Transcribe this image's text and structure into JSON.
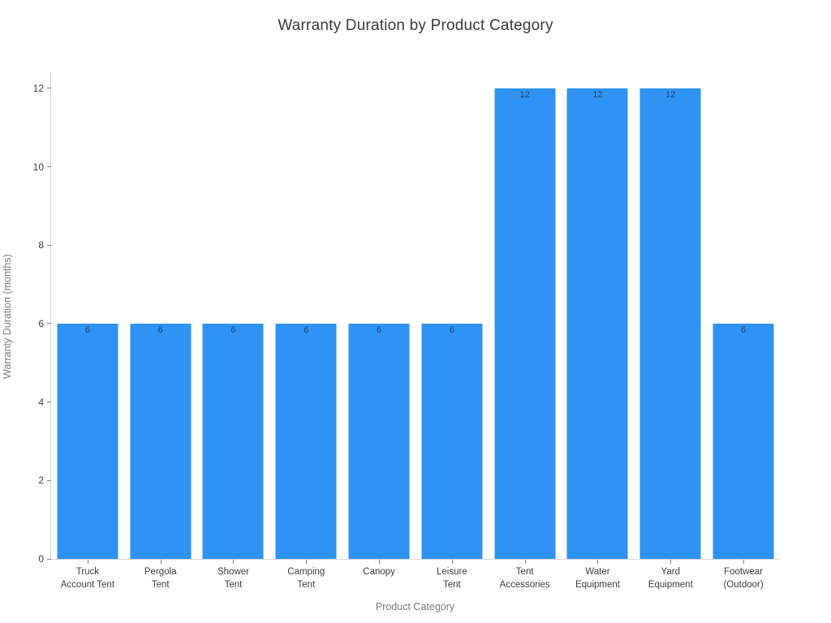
{
  "chart_data": {
    "type": "bar",
    "title": "Warranty Duration by Product Category",
    "xlabel": "Product Category",
    "ylabel": "Warranty Duration (months)",
    "categories": [
      "Truck Account Tent",
      "Pergola Tent",
      "Shower Tent",
      "Camping Tent",
      "Canopy",
      "Leisure Tent",
      "Tent Accessories",
      "Water Equipment",
      "Yard Equipment",
      "Footwear (Outdoor)"
    ],
    "tick_label_lines": [
      [
        "Truck",
        "Account Tent"
      ],
      [
        "Pergola",
        "Tent"
      ],
      [
        "Shower",
        "Tent"
      ],
      [
        "Camping",
        "Tent"
      ],
      [
        "Canopy"
      ],
      [
        "Leisure",
        "Tent"
      ],
      [
        "Tent",
        "Accessories"
      ],
      [
        "Water",
        "Equipment"
      ],
      [
        "Yard",
        "Equipment"
      ],
      [
        "Footwear",
        "(Outdoor)"
      ]
    ],
    "values": [
      6,
      6,
      6,
      6,
      6,
      6,
      12,
      12,
      12,
      6
    ],
    "bar_labels": [
      "6",
      "6",
      "6",
      "6",
      "6",
      "6",
      "12",
      "12",
      "12",
      "6"
    ],
    "yticks": [
      0,
      2,
      4,
      6,
      8,
      10,
      12
    ],
    "ylim": [
      0,
      12.41
    ],
    "grid": false,
    "legend": "none",
    "colors": {
      "bar": "#2e93f5",
      "value_label": "#2a3f5f",
      "tick_label": "#3b3b3b",
      "axis_title": "#7a7a7a",
      "title": "#3a3a3a",
      "axis_line": "#d9d9d9",
      "tick_mark": "#7f7f7f"
    }
  }
}
